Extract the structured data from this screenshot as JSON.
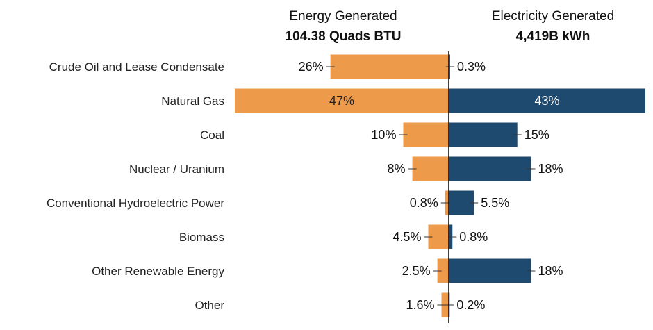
{
  "chart_data": {
    "type": "bar",
    "categories": [
      "Crude Oil and Lease Condensate",
      "Natural Gas",
      "Coal",
      "Nuclear / Uranium",
      "Conventional Hydroelectric Power",
      "Biomass",
      "Other Renewable Energy",
      "Other"
    ],
    "series": [
      {
        "values": [
          26,
          47,
          10,
          8,
          0.8,
          4.5,
          2.5,
          1.6
        ],
        "labels": [
          "26%",
          "47%",
          "10%",
          "8%",
          "0.8%",
          "4.5%",
          "2.5%",
          "1.6%"
        ],
        "color": "#ED9A4B",
        "direction": "left"
      },
      {
        "values": [
          0.3,
          43,
          15,
          18,
          5.5,
          0.8,
          18,
          0.2
        ],
        "labels": [
          "0.3%",
          "43%",
          "15%",
          "18%",
          "5.5%",
          "0.8%",
          "18%",
          "0.2%"
        ],
        "color": "#1F4A6F",
        "direction": "right"
      }
    ],
    "headers": {
      "left_title": "Energy Generated",
      "left_subtitle": "104.38 Quads BTU",
      "right_title": "Electricity Generated",
      "right_subtitle": "4,419B kWh"
    },
    "inside_label_colors": {
      "left": "#222222",
      "right": "#ffffff"
    },
    "axis_color": "#000000",
    "grid": false,
    "legend": "none",
    "orientation": "horizontal diverging"
  }
}
